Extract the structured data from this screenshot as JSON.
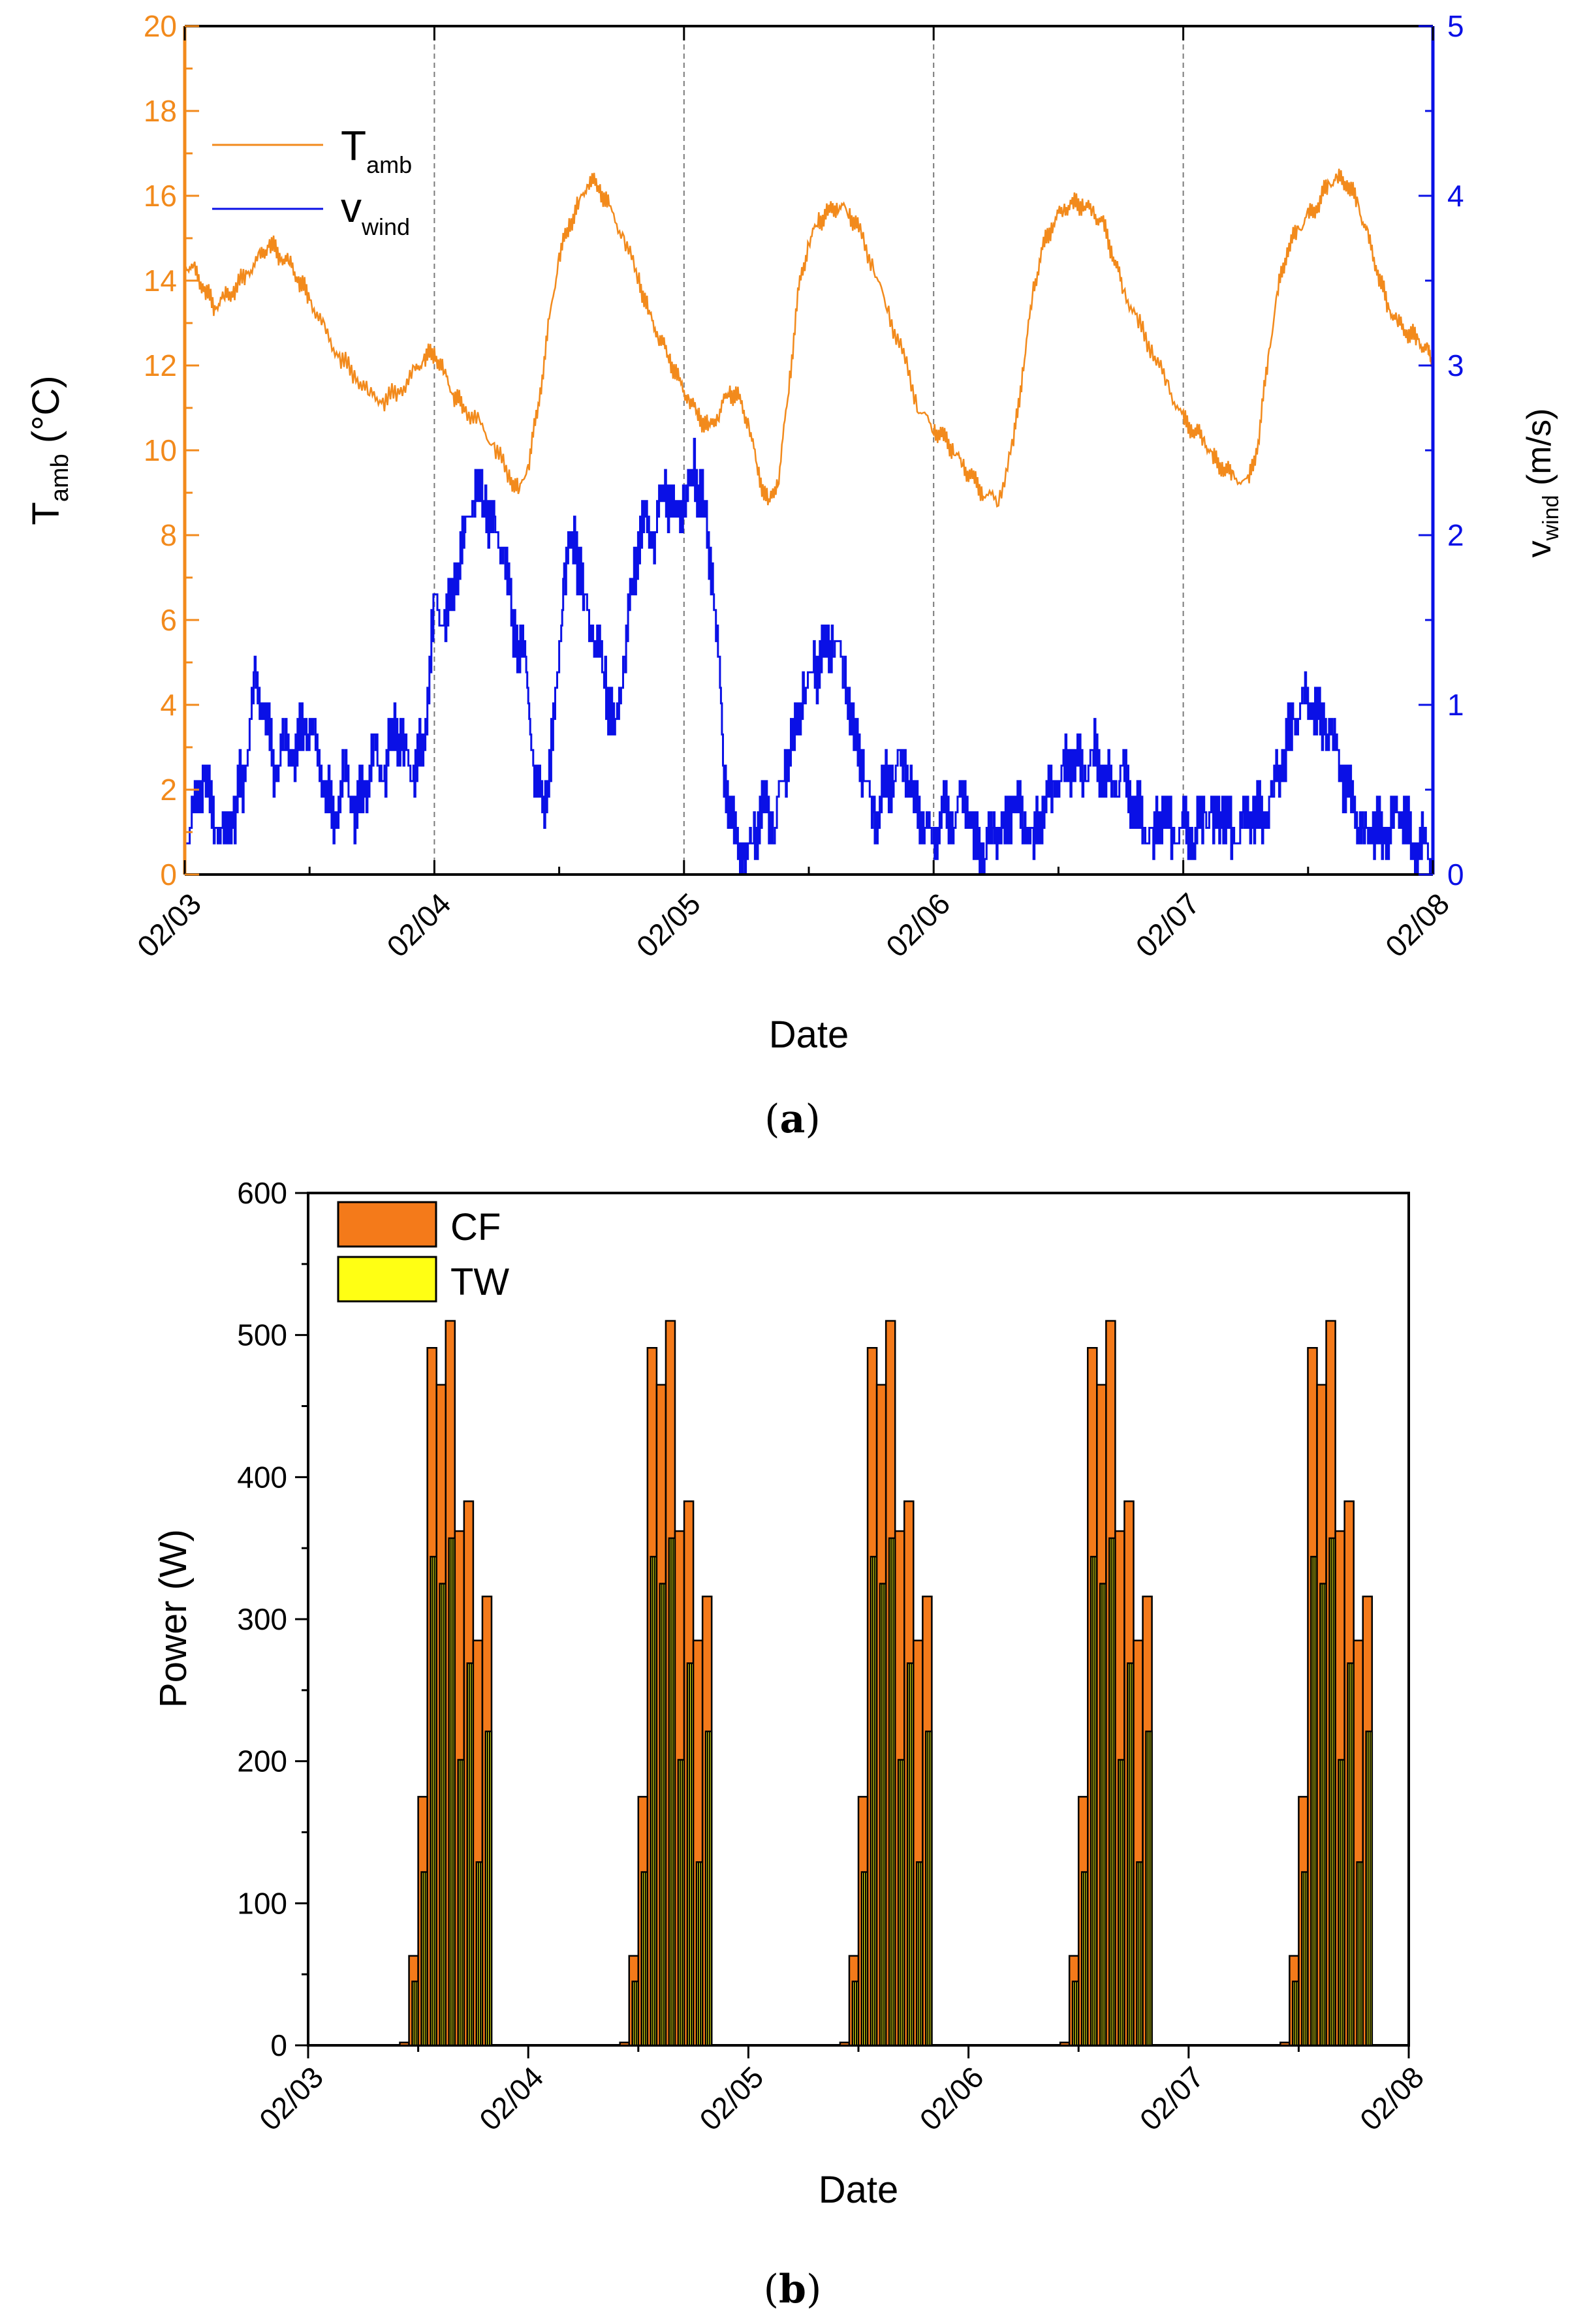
{
  "colors": {
    "temperature": "#f28a1c",
    "wind": "#0a10e6",
    "cf_fill": "#f47a1a",
    "tw_fill": "#ffff14",
    "axis": "#000000",
    "grid": "#7a7a7a"
  },
  "chart_data": [
    {
      "id": "a",
      "caption_label": "a",
      "type": "line",
      "xlabel": "Date",
      "x_range": [
        0,
        5
      ],
      "x_tick_labels": [
        "02/03",
        "02/04",
        "02/05",
        "02/06",
        "02/07",
        "02/08"
      ],
      "y_left": {
        "label_main": "T",
        "label_sub": "amb",
        "label_unit": " (°C)",
        "ylim": [
          0,
          20
        ],
        "ticks": [
          "0",
          "2",
          "4",
          "6",
          "8",
          "10",
          "12",
          "14",
          "16",
          "18",
          "20"
        ]
      },
      "y_right": {
        "label_main": "v",
        "label_sub": "wind",
        "label_unit": " (m/s)",
        "ylim": [
          0,
          5
        ],
        "ticks": [
          "0",
          "1",
          "2",
          "3",
          "4",
          "5"
        ]
      },
      "vertical_gridlines_at_days": [
        1,
        2,
        3,
        4
      ],
      "legend": {
        "position": "top-left"
      },
      "series": [
        {
          "name_main": "T",
          "name_sub": "amb",
          "axis": "left",
          "x": [
            0,
            0.04,
            0.08,
            0.12,
            0.16,
            0.2,
            0.25,
            0.3,
            0.34,
            0.38,
            0.42,
            0.46,
            0.5,
            0.56,
            0.62,
            0.68,
            0.74,
            0.8,
            0.86,
            0.92,
            0.96,
            1.0,
            1.04,
            1.08,
            1.12,
            1.18,
            1.24,
            1.3,
            1.34,
            1.38,
            1.42,
            1.46,
            1.5,
            1.54,
            1.58,
            1.62,
            1.66,
            1.7,
            1.76,
            1.82,
            1.86,
            1.9,
            1.94,
            1.98,
            2.02,
            2.06,
            2.1,
            2.14,
            2.18,
            2.22,
            2.26,
            2.3,
            2.34,
            2.38,
            2.42,
            2.46,
            2.5,
            2.54,
            2.58,
            2.62,
            2.66,
            2.7,
            2.76,
            2.82,
            2.88,
            2.94,
            3.0,
            3.04,
            3.08,
            3.12,
            3.16,
            3.2,
            3.26,
            3.32,
            3.36,
            3.4,
            3.44,
            3.48,
            3.52,
            3.56,
            3.6,
            3.64,
            3.68,
            3.72,
            3.76,
            3.82,
            3.88,
            3.94,
            4.0,
            4.04,
            4.08,
            4.12,
            4.16,
            4.2,
            4.26,
            4.3,
            4.34,
            4.38,
            4.42,
            4.46,
            4.5,
            4.54,
            4.58,
            4.62,
            4.66,
            4.7,
            4.74,
            4.78,
            4.82,
            4.86,
            4.9,
            4.94,
            4.98,
            5.0
          ],
          "values": [
            14.4,
            14.2,
            13.8,
            13.4,
            13.6,
            13.8,
            14.2,
            14.5,
            14.9,
            14.6,
            14.4,
            14.0,
            13.6,
            12.8,
            12.2,
            11.8,
            11.3,
            11.2,
            11.4,
            11.8,
            12.2,
            12.3,
            11.8,
            11.3,
            11.0,
            10.6,
            10.1,
            9.4,
            9.0,
            9.8,
            11.2,
            13.0,
            14.6,
            15.3,
            15.8,
            16.4,
            16.2,
            15.7,
            15.0,
            14.0,
            13.2,
            12.7,
            12.2,
            11.6,
            11.2,
            10.8,
            10.5,
            10.9,
            11.4,
            11.2,
            10.6,
            9.4,
            8.7,
            9.4,
            11.5,
            13.8,
            14.9,
            15.4,
            15.6,
            15.8,
            15.6,
            15.2,
            14.3,
            13.2,
            12.2,
            11.0,
            10.5,
            10.3,
            10.0,
            9.6,
            9.3,
            9.0,
            8.8,
            10.2,
            12.0,
            13.8,
            14.8,
            15.4,
            15.7,
            15.8,
            15.8,
            15.6,
            15.3,
            14.6,
            13.8,
            13.0,
            12.3,
            11.5,
            10.7,
            10.5,
            10.3,
            9.8,
            9.6,
            9.4,
            9.2,
            10.2,
            12.2,
            13.8,
            14.8,
            15.2,
            15.5,
            15.8,
            16.3,
            16.4,
            16.3,
            15.8,
            15.0,
            14.2,
            13.4,
            13.0,
            12.8,
            12.6,
            12.3,
            12.1
          ]
        },
        {
          "name_main": "v",
          "name_sub": "wind",
          "axis": "right",
          "x": [
            0,
            0.04,
            0.08,
            0.12,
            0.16,
            0.2,
            0.24,
            0.28,
            0.32,
            0.36,
            0.4,
            0.44,
            0.48,
            0.52,
            0.56,
            0.6,
            0.64,
            0.68,
            0.72,
            0.76,
            0.8,
            0.84,
            0.88,
            0.92,
            0.96,
            1.0,
            1.04,
            1.08,
            1.12,
            1.16,
            1.2,
            1.24,
            1.28,
            1.32,
            1.36,
            1.4,
            1.44,
            1.48,
            1.52,
            1.56,
            1.6,
            1.64,
            1.68,
            1.72,
            1.76,
            1.8,
            1.84,
            1.88,
            1.92,
            1.96,
            2.0,
            2.04,
            2.08,
            2.12,
            2.16,
            2.2,
            2.24,
            2.28,
            2.32,
            2.36,
            2.4,
            2.44,
            2.48,
            2.52,
            2.56,
            2.6,
            2.64,
            2.68,
            2.72,
            2.76,
            2.8,
            2.84,
            2.88,
            2.92,
            2.96,
            3.0,
            3.04,
            3.08,
            3.12,
            3.16,
            3.2,
            3.24,
            3.28,
            3.32,
            3.36,
            3.4,
            3.44,
            3.48,
            3.52,
            3.56,
            3.6,
            3.64,
            3.68,
            3.72,
            3.76,
            3.8,
            3.84,
            3.88,
            3.92,
            3.96,
            4.0,
            4.04,
            4.08,
            4.12,
            4.16,
            4.2,
            4.24,
            4.28,
            4.32,
            4.36,
            4.4,
            4.44,
            4.48,
            4.52,
            4.56,
            4.6,
            4.64,
            4.68,
            4.72,
            4.76,
            4.8,
            4.84,
            4.88,
            4.92,
            4.96,
            5.0
          ],
          "values": [
            0.2,
            0.4,
            0.6,
            0.3,
            0.2,
            0.4,
            0.6,
            1.1,
            1.0,
            0.6,
            0.8,
            0.7,
            0.9,
            0.8,
            0.5,
            0.3,
            0.6,
            0.4,
            0.5,
            0.7,
            0.6,
            0.9,
            0.7,
            0.6,
            0.8,
            1.6,
            1.5,
            1.7,
            2.0,
            2.3,
            2.2,
            2.0,
            1.9,
            1.4,
            1.3,
            0.6,
            0.4,
            0.9,
            1.8,
            2.0,
            1.6,
            1.4,
            1.2,
            0.8,
            1.3,
            1.8,
            2.1,
            2.0,
            2.3,
            2.1,
            2.2,
            2.4,
            2.1,
            1.7,
            0.6,
            0.2,
            0.1,
            0.2,
            0.4,
            0.3,
            0.6,
            0.8,
            1.1,
            1.2,
            1.3,
            1.4,
            1.2,
            0.8,
            0.6,
            0.3,
            0.5,
            0.6,
            0.7,
            0.4,
            0.3,
            0.2,
            0.4,
            0.3,
            0.5,
            0.2,
            0.1,
            0.3,
            0.2,
            0.5,
            0.3,
            0.2,
            0.4,
            0.5,
            0.6,
            0.7,
            0.6,
            0.7,
            0.6,
            0.5,
            0.6,
            0.4,
            0.3,
            0.2,
            0.4,
            0.2,
            0.3,
            0.2,
            0.4,
            0.3,
            0.4,
            0.2,
            0.3,
            0.4,
            0.3,
            0.5,
            0.7,
            0.9,
            1.0,
            1.0,
            0.9,
            0.8,
            0.6,
            0.4,
            0.2,
            0.3,
            0.2,
            0.3,
            0.4,
            0.1,
            0.2,
            0.1
          ]
        }
      ]
    },
    {
      "id": "b",
      "caption_label": "b",
      "type": "bar",
      "xlabel": "Date",
      "ylabel": "Power (W)",
      "x_range": [
        0,
        5
      ],
      "x_tick_labels": [
        "02/03",
        "02/04",
        "02/05",
        "02/06",
        "02/07",
        "02/08"
      ],
      "ylim": [
        0,
        600
      ],
      "y_ticks": [
        "0",
        "100",
        "200",
        "300",
        "400",
        "500",
        "600"
      ],
      "legend": {
        "position": "top-left"
      },
      "day_offsets": [
        0,
        1,
        2,
        3,
        4
      ],
      "hours_of_day": [
        10,
        11,
        12,
        13,
        14,
        15,
        16,
        17,
        18,
        19
      ],
      "series": [
        {
          "name": "CF",
          "values_per_hour": [
            2,
            63,
            175,
            491,
            465,
            510,
            362,
            383,
            285,
            316
          ]
        },
        {
          "name": "TW",
          "values_per_hour": [
            0,
            45,
            122,
            344,
            325,
            357,
            201,
            269,
            129,
            221
          ]
        }
      ]
    }
  ]
}
